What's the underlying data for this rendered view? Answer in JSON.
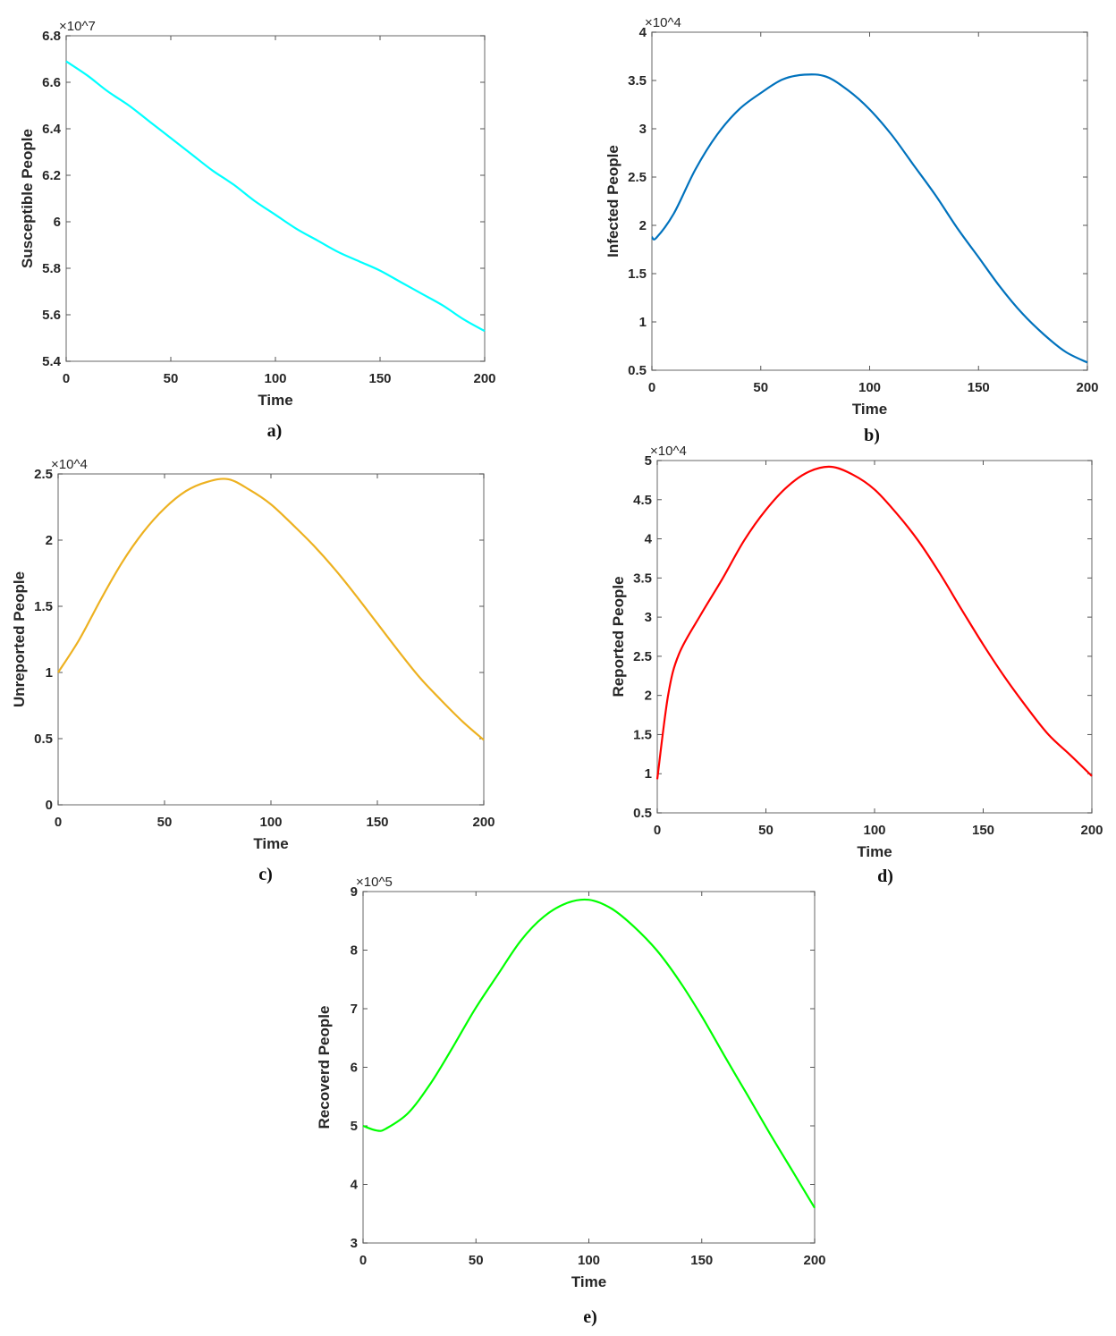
{
  "chart_data": [
    {
      "type": "line",
      "panel_label": "a)",
      "xlabel": "Time",
      "ylabel": "Susceptible People",
      "y_multiplier": "×10^7",
      "xlim": [
        0,
        200
      ],
      "ylim": [
        5.4,
        6.8
      ],
      "xticks": [
        "0",
        "50",
        "100",
        "150",
        "200"
      ],
      "yticks": [
        "5.4",
        "5.6",
        "5.8",
        "6",
        "6.2",
        "6.4",
        "6.6",
        "6.8"
      ],
      "grid": false,
      "color": "#00ffff",
      "x": [
        0,
        10,
        20,
        30,
        40,
        50,
        60,
        70,
        80,
        90,
        100,
        110,
        120,
        130,
        140,
        150,
        160,
        170,
        180,
        190,
        200
      ],
      "y": [
        6.69,
        6.63,
        6.56,
        6.5,
        6.43,
        6.36,
        6.29,
        6.22,
        6.16,
        6.09,
        6.03,
        5.97,
        5.92,
        5.87,
        5.83,
        5.79,
        5.74,
        5.69,
        5.64,
        5.58,
        5.53
      ]
    },
    {
      "type": "line",
      "panel_label": "b)",
      "xlabel": "Time",
      "ylabel": "Infected People",
      "y_multiplier": "×10^4",
      "xlim": [
        0,
        200
      ],
      "ylim": [
        0.5,
        4
      ],
      "xticks": [
        "0",
        "50",
        "100",
        "150",
        "200"
      ],
      "yticks": [
        "0.5",
        "1",
        "1.5",
        "2",
        "2.5",
        "3",
        "3.5",
        "4"
      ],
      "grid": false,
      "color": "#0072bd",
      "x": [
        0,
        2,
        10,
        20,
        30,
        40,
        50,
        60,
        70,
        80,
        90,
        100,
        110,
        120,
        130,
        140,
        150,
        160,
        170,
        180,
        190,
        200
      ],
      "y": [
        1.88,
        1.87,
        2.12,
        2.58,
        2.94,
        3.2,
        3.37,
        3.51,
        3.56,
        3.54,
        3.4,
        3.2,
        2.94,
        2.63,
        2.32,
        1.98,
        1.67,
        1.36,
        1.09,
        0.87,
        0.69,
        0.58
      ]
    },
    {
      "type": "line",
      "panel_label": "c)",
      "xlabel": "Time",
      "ylabel": "Unreported People",
      "y_multiplier": "×10^4",
      "xlim": [
        0,
        200
      ],
      "ylim": [
        0,
        2.5
      ],
      "xticks": [
        "0",
        "50",
        "100",
        "150",
        "200"
      ],
      "yticks": [
        "0",
        "0.5",
        "1",
        "1.5",
        "2",
        "2.5"
      ],
      "grid": false,
      "color": "#edb120",
      "x": [
        0,
        10,
        20,
        30,
        40,
        50,
        60,
        70,
        80,
        90,
        100,
        110,
        120,
        130,
        140,
        150,
        160,
        170,
        180,
        190,
        200
      ],
      "y": [
        1.0,
        1.25,
        1.55,
        1.83,
        2.06,
        2.24,
        2.37,
        2.44,
        2.46,
        2.38,
        2.27,
        2.12,
        1.96,
        1.78,
        1.58,
        1.37,
        1.16,
        0.96,
        0.79,
        0.63,
        0.49
      ]
    },
    {
      "type": "line",
      "panel_label": "d)",
      "xlabel": "Time",
      "ylabel": "Reported People",
      "y_multiplier": "×10^4",
      "xlim": [
        0,
        200
      ],
      "ylim": [
        0.5,
        5
      ],
      "xticks": [
        "0",
        "50",
        "100",
        "150",
        "200"
      ],
      "yticks": [
        "0.5",
        "1",
        "1.5",
        "2",
        "2.5",
        "3",
        "3.5",
        "4",
        "4.5",
        "5"
      ],
      "grid": false,
      "color": "#ff0000",
      "x": [
        0,
        5,
        10,
        20,
        30,
        40,
        50,
        60,
        70,
        80,
        90,
        100,
        110,
        120,
        130,
        140,
        150,
        160,
        170,
        180,
        190,
        200
      ],
      "y": [
        0.93,
        2.0,
        2.53,
        3.03,
        3.49,
        3.98,
        4.37,
        4.67,
        4.86,
        4.92,
        4.82,
        4.63,
        4.33,
        3.98,
        3.56,
        3.1,
        2.65,
        2.23,
        1.85,
        1.5,
        1.24,
        0.97
      ]
    },
    {
      "type": "line",
      "panel_label": "e)",
      "xlabel": "Time",
      "ylabel": "Recoverd People",
      "y_multiplier": "×10^5",
      "xlim": [
        0,
        200
      ],
      "ylim": [
        3,
        9
      ],
      "xticks": [
        "0",
        "50",
        "100",
        "150",
        "200"
      ],
      "yticks": [
        "3",
        "4",
        "5",
        "6",
        "7",
        "8",
        "9"
      ],
      "grid": false,
      "color": "#00ff00",
      "x": [
        0,
        6,
        10,
        20,
        30,
        40,
        50,
        60,
        70,
        80,
        90,
        100,
        110,
        120,
        130,
        140,
        150,
        160,
        170,
        180,
        190,
        200
      ],
      "y": [
        5.0,
        4.92,
        4.95,
        5.22,
        5.73,
        6.36,
        7.02,
        7.6,
        8.17,
        8.57,
        8.8,
        8.86,
        8.71,
        8.4,
        8.0,
        7.48,
        6.87,
        6.2,
        5.54,
        4.88,
        4.24,
        3.6
      ]
    }
  ]
}
